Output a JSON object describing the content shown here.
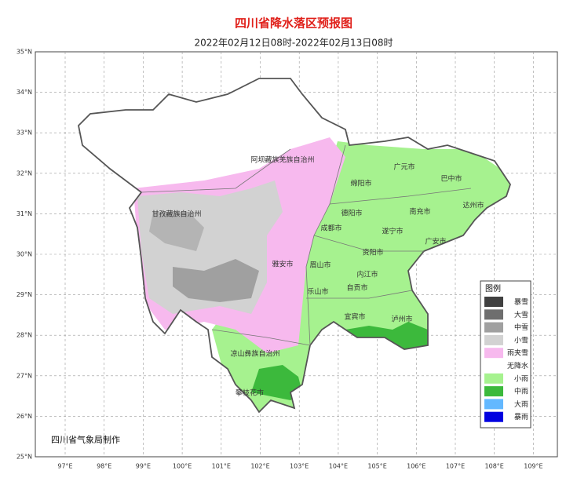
{
  "title": "四川省降水落区预报图",
  "subtitle": "2022年02月12日08时-2022年02月13日08时",
  "lat_labels": [
    "35°N",
    "34°N",
    "33°N",
    "32°N",
    "31°N",
    "30°N",
    "29°N",
    "28°N",
    "27°N",
    "26°N",
    "25°N"
  ],
  "lon_labels": [
    "97°E",
    "98°E",
    "99°E",
    "100°E",
    "101°E",
    "102°E",
    "103°E",
    "104°E",
    "105°E",
    "106°E",
    "107°E",
    "108°E",
    "109°E"
  ],
  "places": [
    "阿坝藏族羌族自治州",
    "甘孜藏族自治州",
    "绵阳市",
    "广元市",
    "巴中市",
    "德阳市",
    "南充市",
    "达州市",
    "成都市",
    "遂宁市",
    "广安市",
    "资阳市",
    "雅安市",
    "眉山市",
    "内江市",
    "自贡市",
    "乐山市",
    "宜宾市",
    "泸州市",
    "凉山彝族自治州",
    "攀枝花市"
  ],
  "legend": {
    "title": "图例",
    "items": [
      {
        "label": "暴雪",
        "color": "#404040"
      },
      {
        "label": "大雪",
        "color": "#6e6e6e"
      },
      {
        "label": "中雪",
        "color": "#a0a0a0"
      },
      {
        "label": "小雪",
        "color": "#d2d2d2"
      },
      {
        "label": "雨夹雪",
        "color": "#f7b9ee"
      },
      {
        "label": "无降水",
        "color": "#ffffff"
      },
      {
        "label": "小雨",
        "color": "#a6f28f"
      },
      {
        "label": "中雨",
        "color": "#3cb93c"
      },
      {
        "label": "大雨",
        "color": "#63b8ff"
      },
      {
        "label": "暴雨",
        "color": "#0000e0"
      }
    ]
  },
  "credit": "四川省气象局制作"
}
